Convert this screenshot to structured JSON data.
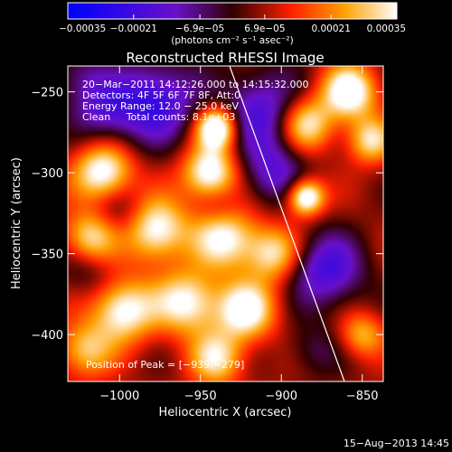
{
  "chart_data": {
    "type": "heatmap",
    "title": "Reconstructed RHESSI Image",
    "xlabel": "Heliocentric X (arcsec)",
    "ylabel": "Heliocentric Y (arcsec)",
    "xlim": [
      -1032,
      -837
    ],
    "ylim": [
      -429,
      -234
    ],
    "x_ticks": [
      -1000,
      -950,
      -900,
      -850
    ],
    "y_ticks": [
      -400,
      -350,
      -300,
      -250
    ],
    "x_tick_labels": [
      "−1000",
      "−950",
      "−900",
      "−850"
    ],
    "y_tick_labels": [
      "−400",
      "−350",
      "−300",
      "−250"
    ],
    "colorbar": {
      "range": [
        -0.00035,
        0.00035
      ],
      "ticks": [
        -0.00035,
        -0.00021,
        -6.9e-05,
        6.9e-05,
        0.00021,
        0.00035
      ],
      "tick_labels": [
        "−0.00035",
        "−0.00021",
        "−6.9e−05",
        "6.9e−05",
        "0.00021",
        "0.00035"
      ],
      "unit_label": "(photons cm⁻² s⁻¹ asec⁻²)"
    },
    "annotations": [
      "20−Mar−2011 14:12:26.000 to 14:15:32.000",
      "Detectors: 4F 5F 6F 7F 8F, Att:0",
      "Energy Range: 12.0 − 25.0 keV",
      "Clean     Total counts: 8.1e+03",
      "Position of Peak = [−939,−279]"
    ],
    "peak": {
      "x": -939,
      "y": -279
    },
    "limb_line": [
      [
        -932,
        -234
      ],
      [
        -861,
        -429
      ]
    ],
    "blobs": [
      {
        "x": -978,
        "y": -256,
        "v": -0.00028,
        "s": 18
      },
      {
        "x": -1010,
        "y": -262,
        "v": -0.00018,
        "s": 14
      },
      {
        "x": -912,
        "y": -262,
        "v": -0.00024,
        "s": 18
      },
      {
        "x": -905,
        "y": -300,
        "v": -0.0002,
        "s": 14
      },
      {
        "x": -1000,
        "y": -325,
        "v": -0.00012,
        "s": 13
      },
      {
        "x": -872,
        "y": -360,
        "v": -0.00026,
        "s": 16
      },
      {
        "x": -938,
        "y": -320,
        "v": -8e-05,
        "s": 10
      },
      {
        "x": -1020,
        "y": -360,
        "v": -0.0001,
        "s": 12
      },
      {
        "x": -880,
        "y": -410,
        "v": -0.0001,
        "s": 12
      },
      {
        "x": -1025,
        "y": -240,
        "v": -0.00012,
        "s": 12
      },
      {
        "x": -940,
        "y": -272,
        "v": 0.00042,
        "s": 9
      },
      {
        "x": -944,
        "y": -300,
        "v": 0.00035,
        "s": 12
      },
      {
        "x": -935,
        "y": -340,
        "v": 0.0003,
        "s": 14
      },
      {
        "x": -1010,
        "y": -300,
        "v": 0.00034,
        "s": 13
      },
      {
        "x": -1018,
        "y": -340,
        "v": 0.00028,
        "s": 12
      },
      {
        "x": -978,
        "y": -335,
        "v": 0.00033,
        "s": 14
      },
      {
        "x": -998,
        "y": -385,
        "v": 0.00032,
        "s": 14
      },
      {
        "x": -958,
        "y": -380,
        "v": 0.0003,
        "s": 14
      },
      {
        "x": -922,
        "y": -385,
        "v": 0.00032,
        "s": 13
      },
      {
        "x": -905,
        "y": -350,
        "v": 0.00026,
        "s": 12
      },
      {
        "x": -885,
        "y": -315,
        "v": 0.0004,
        "s": 8
      },
      {
        "x": -885,
        "y": -270,
        "v": 0.0003,
        "s": 12
      },
      {
        "x": -858,
        "y": -250,
        "v": 0.00035,
        "s": 12
      },
      {
        "x": -845,
        "y": -280,
        "v": 0.00025,
        "s": 10
      },
      {
        "x": -1022,
        "y": -410,
        "v": 0.00022,
        "s": 12
      },
      {
        "x": -940,
        "y": -415,
        "v": 0.00025,
        "s": 12
      },
      {
        "x": -850,
        "y": -400,
        "v": 0.0002,
        "s": 10
      }
    ]
  },
  "footer": {
    "date": "15−Aug−2013 14:45"
  }
}
